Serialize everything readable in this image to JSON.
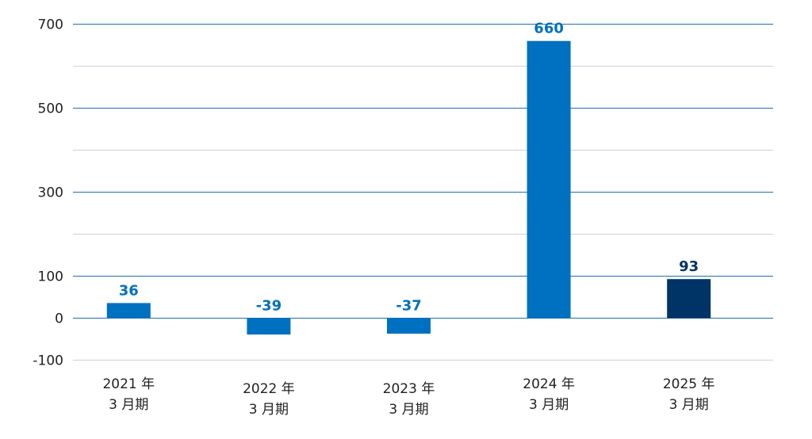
{
  "chart_data": {
    "type": "bar",
    "title": "",
    "xlabel": "",
    "ylabel": "",
    "ylim": [
      -100,
      700
    ],
    "major_ticks": [
      -100,
      0,
      100,
      300,
      500,
      700
    ],
    "minor_gridlines": [
      200,
      400,
      600
    ],
    "grid": true,
    "categories": [
      {
        "line1": "2021 年",
        "line2": "3 月期"
      },
      {
        "line1": "2022 年",
        "line2": "3 月期"
      },
      {
        "line1": "2023 年",
        "line2": "3 月期"
      },
      {
        "line1": "2024 年",
        "line2": "3 月期"
      },
      {
        "line1": "2025 年",
        "line2": "3 月期"
      }
    ],
    "values": [
      36,
      -39,
      -37,
      660,
      93
    ],
    "data_labels": [
      "36",
      "-39",
      "-37",
      "660",
      "93"
    ],
    "tick_labels": [
      "-100",
      "0",
      "100",
      "300",
      "500",
      "700"
    ],
    "colors": {
      "bar": "#0070c0",
      "bar_highlight": "#003366",
      "label": "#0070c0",
      "label_highlight": "#003366",
      "major_grid": "#1f6fb2",
      "minor_grid": "#c9d3dc",
      "zero_line": "#1f6fb2"
    },
    "highlight_index": 4
  }
}
